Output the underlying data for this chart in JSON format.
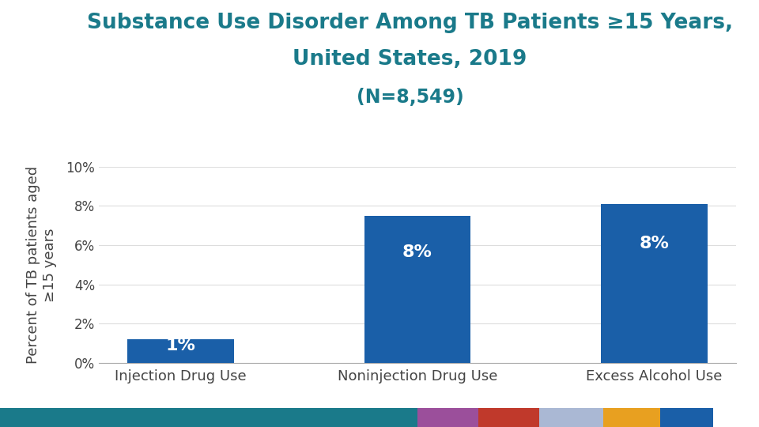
{
  "title_line1": "Substance Use Disorder Among TB Patients ≥15 Years,",
  "title_line2": "United States, 2019",
  "subtitle": "(N=8,549)",
  "title_color": "#1a7a8a",
  "subtitle_color": "#1a7a8a",
  "categories": [
    "Injection Drug Use",
    "Noninjection Drug Use",
    "Excess Alcohol Use"
  ],
  "values": [
    1.2,
    7.5,
    8.1
  ],
  "bar_labels": [
    "1%",
    "8%",
    "8%"
  ],
  "bar_color": "#1a5fa8",
  "ylabel": "Percent of TB patients aged\n≥15 years",
  "ylim": [
    0,
    10
  ],
  "yticks": [
    0,
    2,
    4,
    6,
    8,
    10
  ],
  "ytick_labels": [
    "0%",
    "2%",
    "4%",
    "6%",
    "8%",
    "10%"
  ],
  "bg_color": "#ffffff",
  "bar_label_color": "#ffffff",
  "bar_label_fontsize": 16,
  "title_fontsize": 19,
  "subtitle_fontsize": 17,
  "ylabel_fontsize": 13,
  "xtick_fontsize": 13,
  "ytick_fontsize": 12,
  "footer_colors": [
    "#1a7a8a",
    "#9b4f9b",
    "#c0392b",
    "#aab8d4",
    "#e8a020",
    "#1a5fa8"
  ],
  "footer_widths": [
    0.55,
    0.08,
    0.08,
    0.085,
    0.075,
    0.07
  ]
}
